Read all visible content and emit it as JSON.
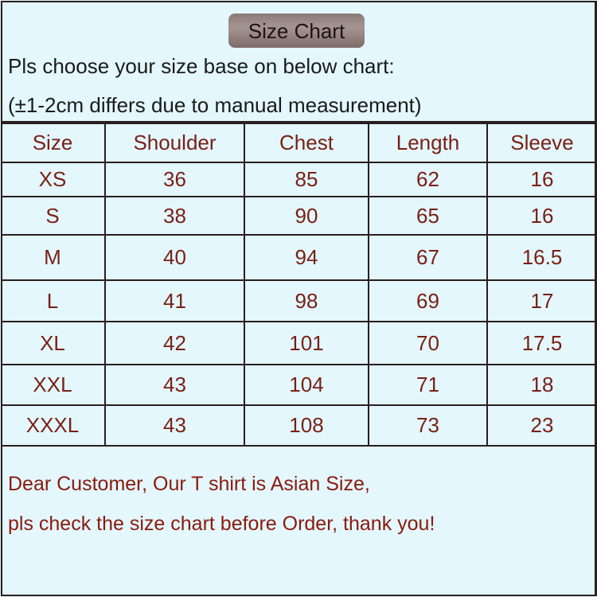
{
  "title": "Size Chart",
  "instructions": [
    "Pls choose your size base on below chart:",
    "(±1-2cm differs due to manual measurement)"
  ],
  "table": {
    "headers": [
      "Size",
      "Shoulder",
      "Chest",
      "Length",
      "Sleeve"
    ],
    "rows": [
      [
        "XS",
        "36",
        "85",
        "62",
        "16"
      ],
      [
        "S",
        "38",
        "90",
        "65",
        "16"
      ],
      [
        "M",
        "40",
        "94",
        "67",
        "16.5"
      ],
      [
        "L",
        "41",
        "98",
        "69",
        "17"
      ],
      [
        "XL",
        "42",
        "101",
        "70",
        "17.5"
      ],
      [
        "XXL",
        "43",
        "104",
        "71",
        "18"
      ],
      [
        "XXXL",
        "43",
        "108",
        "73",
        "23"
      ]
    ]
  },
  "notes": [
    "Dear Customer, Our T shirt is Asian Size,",
    "pls check the size chart before Order, thank you!"
  ],
  "colors": {
    "background": "#e3f7fd",
    "table_text": "#7a1f14",
    "note_text": "#8a1a0e"
  }
}
